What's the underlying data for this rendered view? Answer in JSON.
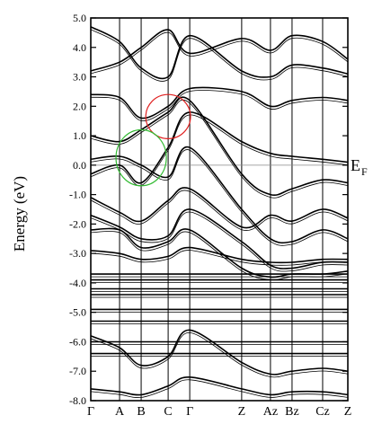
{
  "chart_data": {
    "type": "line",
    "title": "",
    "xlabel": "",
    "ylabel": "Energy (eV)",
    "ylim": [
      -8.0,
      5.0
    ],
    "yticks": [
      "5.0",
      "4.0",
      "3.0",
      "2.0",
      "1.0",
      "0.0",
      "-1.0",
      "-2.0",
      "-3.0",
      "-4.0",
      "-5.0",
      "-6.0",
      "-7.0",
      "-8.0"
    ],
    "ytick_values": [
      5,
      4,
      3,
      2,
      1,
      0,
      -1,
      -2,
      -3,
      -4,
      -5,
      -6,
      -7,
      -8
    ],
    "kpoints": [
      {
        "label": "Γ",
        "pos": 0.0
      },
      {
        "label": "A",
        "pos": 0.112
      },
      {
        "label": "B",
        "pos": 0.196
      },
      {
        "label": "C",
        "pos": 0.301
      },
      {
        "label": "Γ",
        "pos": 0.385
      },
      {
        "label": "Z",
        "pos": 0.587
      },
      {
        "label": "Az",
        "pos": 0.699
      },
      {
        "label": "Bz",
        "pos": 0.783
      },
      {
        "label": "Cz",
        "pos": 0.902
      },
      {
        "label": "Z",
        "pos": 1.0
      }
    ],
    "fermi_level": {
      "value": 0.0,
      "label": "E",
      "subscript": "F"
    },
    "highlights": [
      {
        "center_pos": 0.301,
        "center_energy": 1.65,
        "radius_x": 0.087,
        "radius_y": 0.75,
        "color": "#e02020"
      },
      {
        "center_pos": 0.196,
        "center_energy": 0.25,
        "radius_x": 0.098,
        "radius_y": 0.95,
        "color": "#33bb33"
      }
    ],
    "series": [
      {
        "values": [
          2.4,
          2.3,
          1.6,
          2.0,
          2.6,
          2.5,
          2.0,
          2.2,
          2.3,
          2.2
        ]
      },
      {
        "values": [
          -0.3,
          0.0,
          -0.6,
          0.6,
          1.8,
          0.8,
          0.4,
          0.3,
          0.2,
          0.1
        ]
      },
      {
        "values": [
          0.2,
          0.3,
          0.0,
          -0.4,
          0.6,
          -1.5,
          -2.5,
          -2.6,
          -2.2,
          -2.5
        ]
      },
      {
        "values": [
          1.0,
          0.8,
          1.2,
          1.8,
          2.2,
          -0.3,
          -1.0,
          -0.8,
          -0.5,
          -0.6
        ]
      },
      {
        "values": [
          -1.7,
          -2.1,
          -2.5,
          -2.4,
          -1.5,
          -2.6,
          -3.4,
          -3.5,
          -3.3,
          -3.3
        ]
      },
      {
        "values": [
          -2.2,
          -2.2,
          -2.8,
          -2.6,
          -2.2,
          -3.5,
          -3.8,
          -3.7,
          -3.7,
          -3.6
        ]
      },
      {
        "values": [
          -3.7,
          -3.7,
          -3.7,
          -3.7,
          -3.7,
          -3.7,
          -3.7,
          -3.7,
          -3.7,
          -3.7
        ]
      },
      {
        "values": [
          -3.9,
          -3.9,
          -3.9,
          -3.9,
          -3.9,
          -3.9,
          -3.9,
          -3.9,
          -3.9,
          -3.9
        ]
      },
      {
        "values": [
          -4.2,
          -4.2,
          -4.2,
          -4.2,
          -4.2,
          -4.2,
          -4.2,
          -4.2,
          -4.2,
          -4.2
        ]
      },
      {
        "values": [
          -4.4,
          -4.4,
          -4.4,
          -4.4,
          -4.4,
          -4.4,
          -4.4,
          -4.4,
          -4.4,
          -4.4
        ]
      },
      {
        "values": [
          -4.9,
          -4.9,
          -4.9,
          -4.9,
          -4.9,
          -4.9,
          -4.9,
          -4.9,
          -4.9,
          -4.9
        ]
      },
      {
        "values": [
          -5.3,
          -5.3,
          -5.3,
          -5.3,
          -5.3,
          -5.3,
          -5.3,
          -5.3,
          -5.3,
          -5.3
        ]
      },
      {
        "values": [
          -6.0,
          -6.0,
          -6.0,
          -6.0,
          -6.0,
          -6.0,
          -6.0,
          -6.0,
          -6.0,
          -6.0
        ]
      },
      {
        "values": [
          -6.4,
          -6.4,
          -6.4,
          -6.4,
          -6.4,
          -6.4,
          -6.4,
          -6.4,
          -6.4,
          -6.4
        ]
      },
      {
        "values": [
          -5.8,
          -6.2,
          -6.8,
          -6.5,
          -5.6,
          -6.7,
          -7.1,
          -7.0,
          -6.9,
          -7.0
        ]
      },
      {
        "values": [
          3.2,
          3.5,
          4.0,
          4.6,
          3.8,
          4.3,
          3.9,
          4.4,
          4.2,
          3.6
        ]
      },
      {
        "values": [
          4.7,
          4.2,
          3.3,
          3.0,
          4.4,
          3.2,
          3.0,
          3.4,
          3.3,
          3.1
        ]
      },
      {
        "values": [
          -1.1,
          -1.6,
          -1.9,
          -1.2,
          -0.8,
          -2.1,
          -1.7,
          -1.9,
          -1.5,
          -1.8
        ]
      },
      {
        "values": [
          -2.9,
          -3.0,
          -3.2,
          -3.1,
          -2.8,
          -3.2,
          -3.3,
          -3.3,
          -3.2,
          -3.2
        ]
      },
      {
        "values": [
          -7.6,
          -7.7,
          -7.8,
          -7.5,
          -7.2,
          -7.6,
          -7.8,
          -7.7,
          -7.7,
          -7.8
        ]
      }
    ]
  }
}
